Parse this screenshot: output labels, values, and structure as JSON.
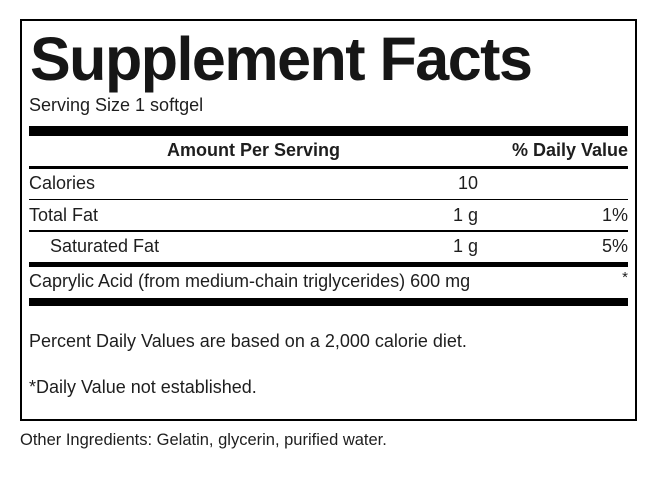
{
  "label": {
    "title": "Supplement Facts",
    "serving_size": "Serving Size 1 softgel",
    "header": {
      "amount_per_serving": "Amount Per Serving",
      "daily_value": "% Daily Value"
    },
    "rows": [
      {
        "name": "Calories",
        "amount": "10",
        "dv": ""
      },
      {
        "name": "Total Fat",
        "amount": "1 g",
        "dv": "1%"
      },
      {
        "name": "Saturated Fat",
        "amount": "1 g",
        "dv": "5%"
      }
    ],
    "ingredient_row": {
      "text": "Caprylic Acid (from medium-chain triglycerides) 600 mg",
      "dv": "*"
    },
    "footnotes": {
      "daily_values": "Percent Daily Values are based on a 2,000 calorie diet.",
      "not_established": "*Daily Value not established."
    },
    "other_ingredients": "Other Ingredients: Gelatin, glycerin, purified water."
  },
  "colors": {
    "text": "#1e1e1e",
    "rule": "#000000",
    "background": "#ffffff"
  }
}
